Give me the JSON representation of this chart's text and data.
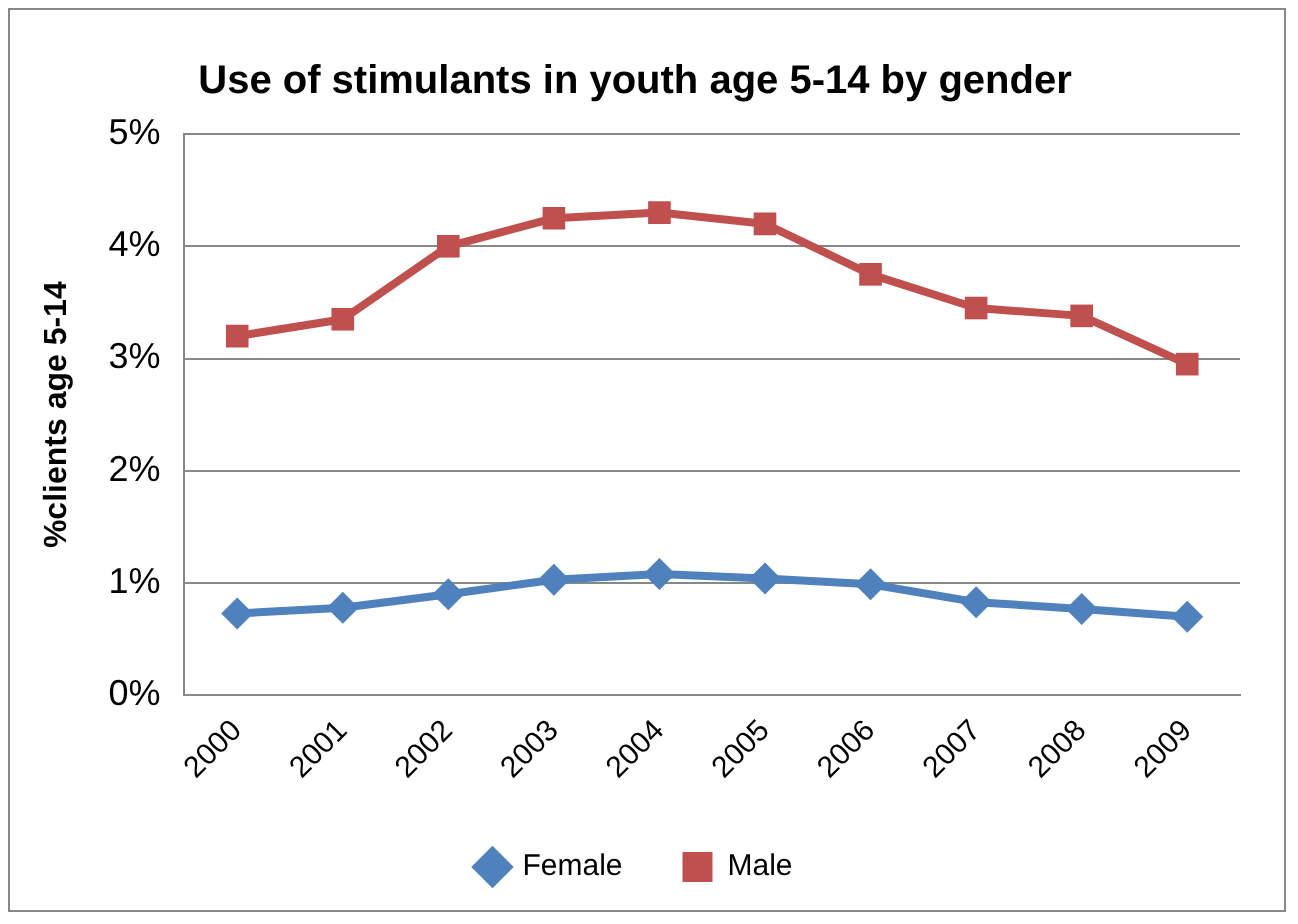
{
  "chart_data": {
    "type": "line",
    "title": "Use of stimulants in youth age 5-14 by gender",
    "ylabel": "%clients age 5-14",
    "categories": [
      "2000",
      "2001",
      "2002",
      "2003",
      "2004",
      "2005",
      "2006",
      "2007",
      "2008",
      "2009"
    ],
    "series": [
      {
        "name": "Female",
        "color": "#4f81bd",
        "marker": "diamond",
        "values": [
          0.73,
          0.78,
          0.9,
          1.03,
          1.08,
          1.04,
          0.99,
          0.83,
          0.77,
          0.7
        ]
      },
      {
        "name": "Male",
        "color": "#c0504d",
        "marker": "square",
        "values": [
          3.2,
          3.35,
          4.0,
          4.25,
          4.3,
          4.2,
          3.75,
          3.45,
          3.38,
          2.95
        ]
      }
    ],
    "ylim": [
      0,
      5
    ],
    "yticks": [
      {
        "value": 0,
        "label": "0%"
      },
      {
        "value": 1,
        "label": "1%"
      },
      {
        "value": 2,
        "label": "2%"
      },
      {
        "value": 3,
        "label": "3%"
      },
      {
        "value": 4,
        "label": "4%"
      },
      {
        "value": 5,
        "label": "5%"
      }
    ],
    "grid": "y",
    "legend": "bottom",
    "line_style": "solid"
  }
}
